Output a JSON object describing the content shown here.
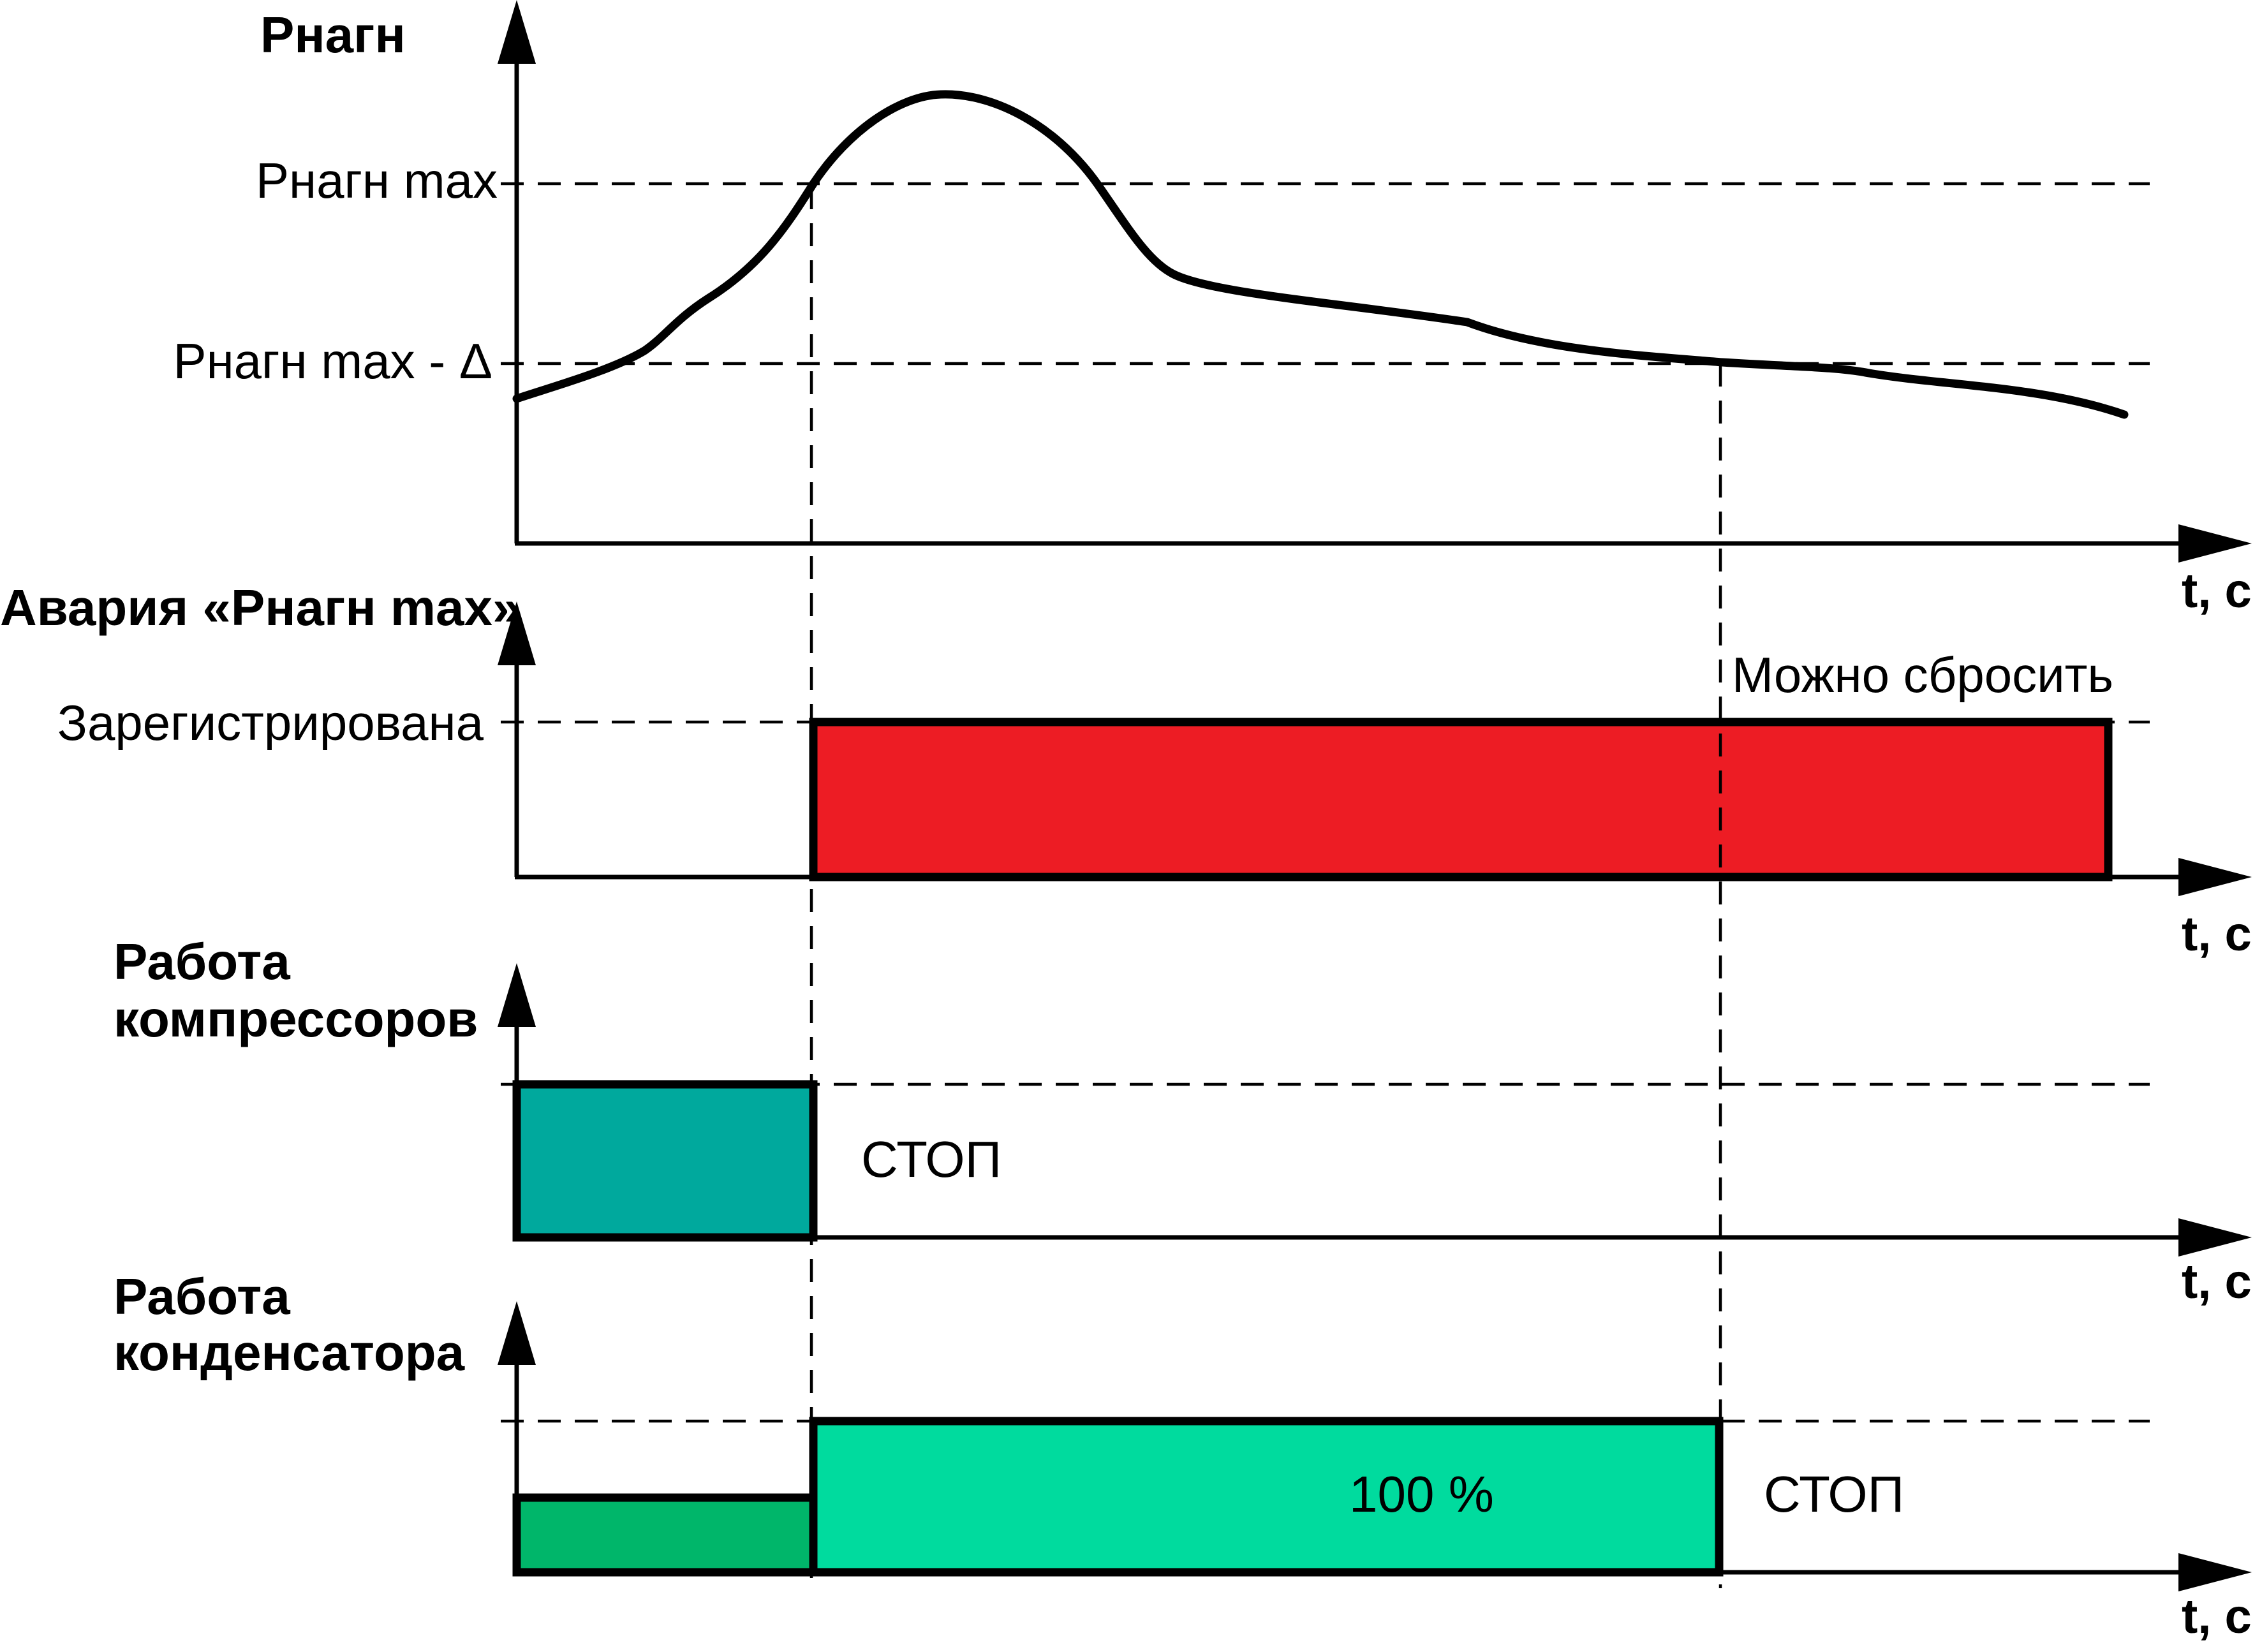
{
  "colors": {
    "alarm": "#ED1C24",
    "compressor": "#00A99D",
    "condenser_low": "#00B66A",
    "condenser_full": "#00DB9E"
  },
  "panels": {
    "pressure": {
      "title": "Pнагн",
      "level_max": "Pнагн max",
      "level_max_delta": "Pнагн max - Δ",
      "time_label": "t, c"
    },
    "alarm": {
      "title": "Авария «Pнагн max»",
      "registered": "Зарегистрирована",
      "can_reset": "Можно сбросить",
      "time_label": "t, c"
    },
    "compressors": {
      "title_line1": "Работа",
      "title_line2": "компрессоров",
      "stop": "СТОП",
      "time_label": "t, c"
    },
    "condenser": {
      "title_line1": "Работа",
      "title_line2": "конденсатора",
      "full": "100 %",
      "stop": "СТОП",
      "time_label": "t, c"
    }
  }
}
